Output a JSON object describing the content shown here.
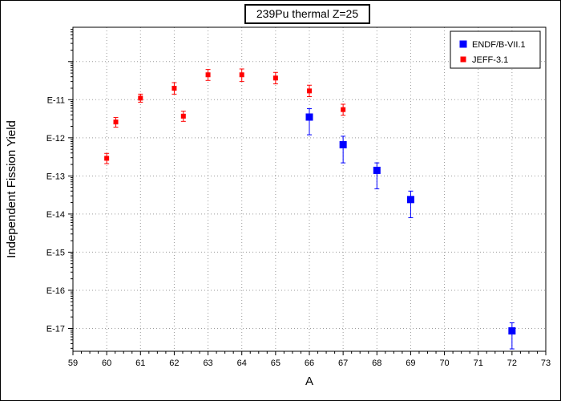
{
  "chart_data": {
    "type": "scatter",
    "title": "239Pu thermal Z=25",
    "xlabel": "A",
    "ylabel": "Independent Fission Yield",
    "xlim": [
      59,
      73
    ],
    "ylim_log10": [
      -17.6,
      -9.1
    ],
    "y_scale": "log",
    "grid": "dotted",
    "legend_position": "top-right",
    "x_ticks": [
      "59",
      "60",
      "61",
      "62",
      "63",
      "64",
      "65",
      "66",
      "67",
      "68",
      "69",
      "70",
      "71",
      "72",
      "73"
    ],
    "y_ticks": [
      "E-11",
      "E-12",
      "E-13",
      "E-14",
      "E-15",
      "E-16",
      "E-17"
    ],
    "series": [
      {
        "name": "ENDF/B-VII.1",
        "color": "#0000ff",
        "marker": "square",
        "points": [
          {
            "x": 66,
            "y": 3.5e-12,
            "y_lo": 1.2e-12,
            "y_hi": 5.8e-12
          },
          {
            "x": 67,
            "y": 6.6e-13,
            "y_lo": 2.2e-13,
            "y_hi": 1.1e-12
          },
          {
            "x": 68,
            "y": 1.4e-13,
            "y_lo": 4.6e-14,
            "y_hi": 2.2e-13
          },
          {
            "x": 69,
            "y": 2.4e-14,
            "y_lo": 8e-15,
            "y_hi": 4e-14
          },
          {
            "x": 72,
            "y": 8.6e-18,
            "y_lo": 2.9e-18,
            "y_hi": 1.4e-17
          }
        ]
      },
      {
        "name": "JEFF-3.1",
        "color": "#ff0000",
        "marker": "square",
        "points": [
          {
            "x": 60,
            "y": 2.9e-13,
            "y_lo": 2.1e-13,
            "y_hi": 3.9e-13
          },
          {
            "x": 60.27,
            "y": 2.6e-12,
            "y_lo": 1.9e-12,
            "y_hi": 3.4e-12
          },
          {
            "x": 61,
            "y": 1.1e-11,
            "y_lo": 8.6e-12,
            "y_hi": 1.4e-11
          },
          {
            "x": 62,
            "y": 2e-11,
            "y_lo": 1.4e-11,
            "y_hi": 2.8e-11
          },
          {
            "x": 62.27,
            "y": 3.7e-12,
            "y_lo": 2.7e-12,
            "y_hi": 5e-12
          },
          {
            "x": 63,
            "y": 4.5e-11,
            "y_lo": 3.2e-11,
            "y_hi": 6.2e-11
          },
          {
            "x": 64,
            "y": 4.5e-11,
            "y_lo": 3e-11,
            "y_hi": 6.4e-11
          },
          {
            "x": 65,
            "y": 3.7e-11,
            "y_lo": 2.6e-11,
            "y_hi": 5.2e-11
          },
          {
            "x": 66,
            "y": 1.7e-11,
            "y_lo": 1.2e-11,
            "y_hi": 2.4e-11
          },
          {
            "x": 67,
            "y": 5.5e-12,
            "y_lo": 3.9e-12,
            "y_hi": 7.6e-12
          }
        ]
      }
    ]
  }
}
